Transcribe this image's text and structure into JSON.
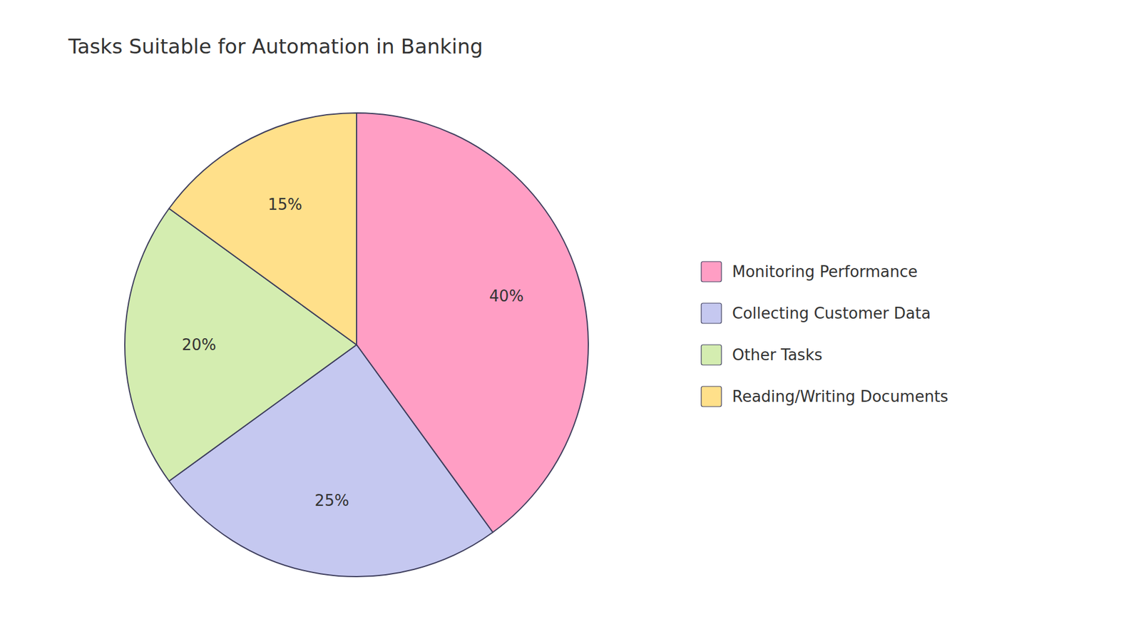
{
  "chart_data": {
    "type": "pie",
    "title": "Tasks Suitable for Automation in Banking",
    "categories": [
      "Monitoring Performance",
      "Collecting Customer Data",
      "Other Tasks",
      "Reading/Writing Documents"
    ],
    "values": [
      40,
      25,
      20,
      15
    ],
    "value_labels": [
      "40%",
      "25%",
      "20%",
      "15%"
    ],
    "colors": [
      "#FF9EC4",
      "#C5C8F0",
      "#D4EDB0",
      "#FFE08A"
    ],
    "data_labels": true,
    "legend": "right"
  }
}
